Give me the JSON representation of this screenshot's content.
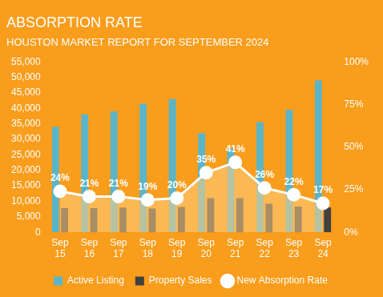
{
  "chart_data": {
    "type": "bar",
    "title": "ABSORPTION RATE",
    "subtitle": "HOUSTON MARKET REPORT FOR SEPTEMBER 2024",
    "categories": [
      "Sep 15",
      "Sep 16",
      "Sep 17",
      "Sep 18",
      "Sep 19",
      "Sep 20",
      "Sep 21",
      "Sep 22",
      "Sep 23",
      "Sep 24"
    ],
    "series": [
      {
        "name": "Active Listing",
        "type": "bar",
        "color": "#5BB5C9",
        "values": [
          34000,
          38000,
          39000,
          41500,
          43000,
          32000,
          27000,
          35500,
          39500,
          49000
        ]
      },
      {
        "name": "Property Sales",
        "type": "bar",
        "color": "#404040",
        "values": [
          7800,
          7800,
          8000,
          7700,
          8200,
          11000,
          11000,
          9200,
          8300,
          8000
        ]
      },
      {
        "name": "New Absorption Rate",
        "type": "area",
        "axis": "y2",
        "color": "#FFFFFF",
        "marker": "circle",
        "data_labels": true,
        "values": [
          24,
          21,
          21,
          19,
          20,
          35,
          41,
          26,
          22,
          17
        ],
        "value_labels": [
          "24%",
          "21%",
          "21%",
          "19%",
          "20%",
          "35%",
          "41%",
          "26%",
          "22%",
          "17%"
        ]
      }
    ],
    "ylim": [
      0,
      55000
    ],
    "yticks": [
      0,
      {
        "value": 5000,
        "label": "5,000"
      },
      {
        "value": 10000,
        "label": "10,000"
      },
      {
        "value": 15000,
        "label": "15,000"
      },
      {
        "value": 20000,
        "label": "20,000"
      },
      {
        "value": 25000,
        "label": "25,000"
      },
      {
        "value": 30000,
        "label": "30,000"
      },
      {
        "value": 35000,
        "label": "35,000"
      },
      {
        "value": 40000,
        "label": "40,000"
      },
      {
        "value": 45000,
        "label": "45,000"
      },
      {
        "value": 50000,
        "label": "50,000"
      },
      {
        "value": 55000,
        "label": "55,000"
      }
    ],
    "y2lim": [
      0,
      100
    ],
    "y2ticks": [
      {
        "value": 0,
        "label": "0%"
      },
      {
        "value": 25,
        "label": "25%"
      },
      {
        "value": 50,
        "label": "50%"
      },
      {
        "value": 75,
        "label": "75%"
      },
      {
        "value": 100,
        "label": "100%"
      }
    ],
    "grid": false,
    "legend": "bottom"
  }
}
